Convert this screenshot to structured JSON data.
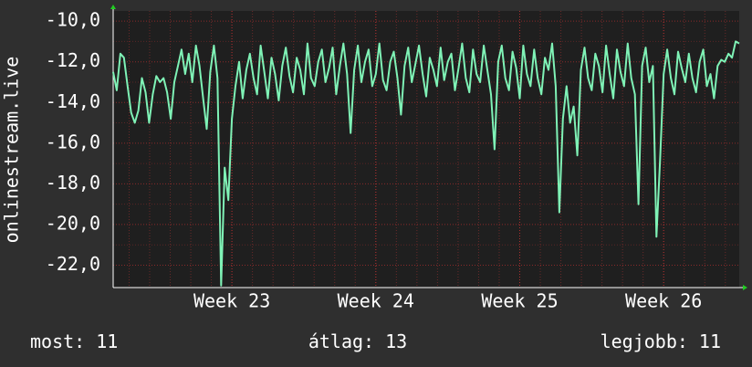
{
  "chart_data": {
    "type": "line",
    "y_label": "onlinestream.live",
    "categories": [
      null,
      null,
      null,
      null,
      null,
      null,
      null,
      null,
      null,
      null,
      null,
      null,
      null,
      null,
      null,
      null,
      null,
      null,
      null,
      null,
      null,
      null,
      null,
      null,
      null,
      null,
      null,
      null,
      null,
      null,
      null,
      null,
      null,
      "Week 23",
      null,
      null,
      null,
      null,
      null,
      null,
      null,
      null,
      null,
      null,
      null,
      null,
      null,
      null,
      null,
      null,
      null,
      null,
      null,
      null,
      null,
      null,
      null,
      null,
      null,
      null,
      null,
      null,
      null,
      null,
      null,
      null,
      null,
      null,
      null,
      null,
      null,
      null,
      null,
      "Week 24",
      null,
      null,
      null,
      null,
      null,
      null,
      null,
      null,
      null,
      null,
      null,
      null,
      null,
      null,
      null,
      null,
      null,
      null,
      null,
      null,
      null,
      null,
      null,
      null,
      null,
      null,
      null,
      null,
      null,
      null,
      null,
      null,
      null,
      null,
      null,
      null,
      null,
      null,
      null,
      "Week 25",
      null,
      null,
      null,
      null,
      null,
      null,
      null,
      null,
      null,
      null,
      null,
      null,
      null,
      null,
      null,
      null,
      null,
      null,
      null,
      null,
      null,
      null,
      null,
      null,
      null,
      null,
      null,
      null,
      null,
      null,
      null,
      null,
      null,
      null,
      null,
      null,
      null,
      null,
      null,
      "Week 26",
      null,
      null,
      null,
      null,
      null,
      null,
      null,
      null,
      null,
      null,
      null,
      null,
      null,
      null,
      null,
      null,
      null,
      null,
      null,
      null,
      null
    ],
    "series": [
      {
        "color": "#7ff2b6",
        "values": [
          -12.5,
          -13.4,
          -11.6,
          -11.8,
          -13.2,
          -14.5,
          -15.0,
          -14.4,
          -12.8,
          -13.5,
          -15.0,
          -13.6,
          -12.7,
          -13.0,
          -12.8,
          -13.5,
          -14.8,
          -13.0,
          -12.2,
          -11.4,
          -12.6,
          -11.6,
          -13.0,
          -11.2,
          -12.2,
          -13.8,
          -15.3,
          -12.5,
          -11.2,
          -12.8,
          -23.0,
          -17.2,
          -18.8,
          -14.8,
          -13.2,
          -12.0,
          -13.8,
          -12.4,
          -11.6,
          -12.8,
          -13.6,
          -11.2,
          -12.5,
          -13.8,
          -11.8,
          -12.6,
          -13.9,
          -12.2,
          -11.3,
          -12.7,
          -13.5,
          -11.8,
          -12.4,
          -13.6,
          -11.1,
          -12.8,
          -13.2,
          -12.0,
          -11.4,
          -13.0,
          -12.3,
          -11.3,
          -13.6,
          -12.2,
          -11.1,
          -12.6,
          -15.5,
          -12.4,
          -11.2,
          -13.0,
          -12.0,
          -11.4,
          -13.2,
          -12.6,
          -11.1,
          -12.9,
          -13.4,
          -12.0,
          -11.5,
          -12.8,
          -14.6,
          -12.2,
          -11.3,
          -13.0,
          -12.1,
          -11.2,
          -12.6,
          -13.7,
          -11.8,
          -12.4,
          -13.2,
          -11.3,
          -12.9,
          -12.0,
          -11.6,
          -13.4,
          -12.3,
          -11.1,
          -12.8,
          -13.5,
          -11.4,
          -12.6,
          -13.0,
          -11.2,
          -12.4,
          -13.6,
          -16.3,
          -12.0,
          -11.2,
          -12.8,
          -13.4,
          -11.5,
          -12.3,
          -13.8,
          -11.2,
          -12.6,
          -13.2,
          -11.4,
          -12.8,
          -13.6,
          -11.8,
          -12.4,
          -11.1,
          -13.2,
          -19.4,
          -14.8,
          -13.2,
          -15.0,
          -14.2,
          -16.6,
          -12.4,
          -11.3,
          -12.8,
          -13.4,
          -11.6,
          -12.2,
          -13.5,
          -11.2,
          -12.6,
          -13.8,
          -11.4,
          -12.5,
          -13.2,
          -11.1,
          -12.8,
          -13.6,
          -19.0,
          -12.2,
          -11.3,
          -13.0,
          -12.2,
          -20.6,
          -16.8,
          -12.6,
          -11.4,
          -12.8,
          -13.6,
          -11.5,
          -12.3,
          -13.0,
          -11.6,
          -12.8,
          -13.5,
          -12.0,
          -11.4,
          -13.2,
          -12.6,
          -13.8,
          -12.2,
          -11.9,
          -12.0,
          -11.6,
          -11.8,
          -11.0,
          -11.1
        ]
      }
    ],
    "ylim": [
      -23.1,
      -9.5
    ],
    "yticks": [
      {
        "value": -22,
        "label": "-22,0"
      },
      {
        "value": -20,
        "label": "-20,0"
      },
      {
        "value": -18,
        "label": "-18,0"
      },
      {
        "value": -16,
        "label": "-16,0"
      },
      {
        "value": -14,
        "label": "-14,0"
      },
      {
        "value": -12,
        "label": "-12,0"
      },
      {
        "value": -10,
        "label": "-10,0"
      }
    ],
    "grid": true,
    "stats": [
      {
        "label": "most:",
        "value": 11
      },
      {
        "label": "átlag:",
        "value": 13
      },
      {
        "label": "legjobb:",
        "value": 11
      }
    ]
  }
}
